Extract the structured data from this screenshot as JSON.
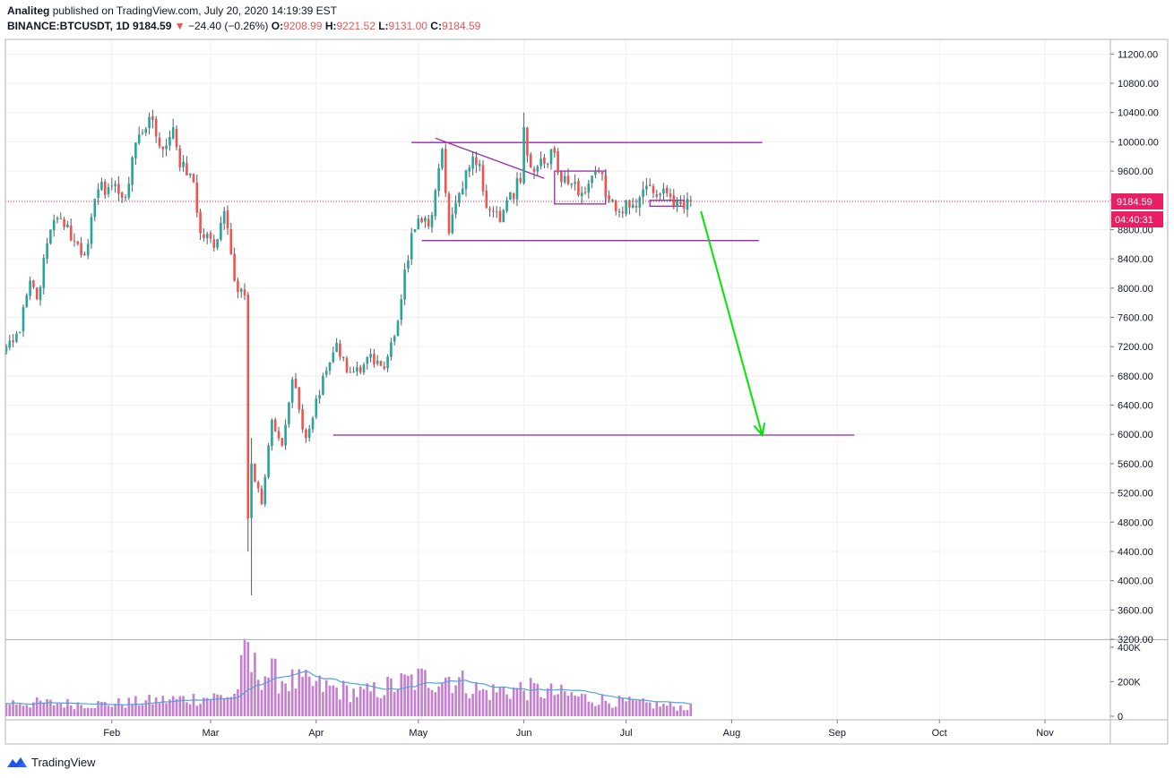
{
  "header": {
    "author": "Analiteg",
    "published_text": "published on TradingView.com, July 20, 2020 14:19:39 EST",
    "symbol": "BINANCE:BTCUSDT, 1D",
    "last": "9184.59",
    "change_arrow": "▼",
    "change": "−24.40 (−0.26%)",
    "o_label": "O:",
    "o_value": "9208.99",
    "h_label": "H:",
    "h_value": "9221.52",
    "l_label": "L:",
    "l_value": "9131.00",
    "c_label": "C:",
    "c_value": "9184.59"
  },
  "footer": {
    "brand": "TradingView",
    "logo_icon": "tradingview-logo-icon"
  },
  "colors": {
    "up": "#26a69a",
    "down": "#ef5350",
    "wick": "#555a64",
    "level_line": "#9c27b0",
    "arrow": "#00e600",
    "price_line": "#e91e63",
    "volume": "#ba68c8",
    "volume_ma": "#4fa3e0",
    "grid": "#eef0f3"
  },
  "chart_data": {
    "type": "candlestick",
    "symbol": "BINANCE:BTCUSDT",
    "interval": "1D",
    "x_tick_labels": [
      "Feb",
      "Mar",
      "Apr",
      "May",
      "Jun",
      "Jul",
      "Aug",
      "Sep",
      "Oct",
      "Nov"
    ],
    "x_tick_dates": [
      "2020-02-01",
      "2020-03-01",
      "2020-04-01",
      "2020-05-01",
      "2020-06-01",
      "2020-07-01",
      "2020-08-01",
      "2020-09-01",
      "2020-10-01",
      "2020-11-01"
    ],
    "y_tick_labels": [
      "11200.00",
      "10800.00",
      "10400.00",
      "10000.00",
      "9600.00",
      "9200.00",
      "8800.00",
      "8400.00",
      "8000.00",
      "7600.00",
      "7200.00",
      "6800.00",
      "6400.00",
      "6000.00",
      "5600.00",
      "5200.00",
      "4800.00",
      "4400.00",
      "4000.00",
      "3600.00",
      "3200.00"
    ],
    "ylim": [
      3200,
      11400
    ],
    "scale": "linear",
    "grid": true,
    "current_price_label": "9184.59",
    "countdown_label": "04:40:31",
    "current_price": 9184.59,
    "volume_tick_labels": [
      "400K",
      "200K",
      "0"
    ],
    "volume_ylim": [
      0,
      420000
    ],
    "price_keypoints": [
      [
        "2020-01-01",
        7200
      ],
      [
        "2020-01-05",
        7400
      ],
      [
        "2020-01-08",
        8100
      ],
      [
        "2020-01-10",
        7850
      ],
      [
        "2020-01-14",
        8800
      ],
      [
        "2020-01-17",
        8950
      ],
      [
        "2020-01-21",
        8650
      ],
      [
        "2020-01-24",
        8450
      ],
      [
        "2020-01-28",
        9350
      ],
      [
        "2020-02-01",
        9400
      ],
      [
        "2020-02-05",
        9250
      ],
      [
        "2020-02-09",
        10100
      ],
      [
        "2020-02-13",
        10300
      ],
      [
        "2020-02-16",
        9900
      ],
      [
        "2020-02-19",
        10200
      ],
      [
        "2020-02-21",
        9650
      ],
      [
        "2020-02-25",
        9450
      ],
      [
        "2020-02-27",
        8750
      ],
      [
        "2020-03-02",
        8550
      ],
      [
        "2020-03-05",
        9050
      ],
      [
        "2020-03-08",
        8100
      ],
      [
        "2020-03-11",
        7900
      ],
      [
        "2020-03-12",
        4850
      ],
      [
        "2020-03-13",
        5600
      ],
      [
        "2020-03-16",
        5050
      ],
      [
        "2020-03-19",
        6200
      ],
      [
        "2020-03-22",
        5850
      ],
      [
        "2020-03-25",
        6750
      ],
      [
        "2020-03-29",
        5950
      ],
      [
        "2020-04-03",
        6800
      ],
      [
        "2020-04-07",
        7250
      ],
      [
        "2020-04-10",
        6850
      ],
      [
        "2020-04-14",
        6850
      ],
      [
        "2020-04-17",
        7100
      ],
      [
        "2020-04-21",
        6900
      ],
      [
        "2020-04-25",
        7550
      ],
      [
        "2020-04-29",
        8750
      ],
      [
        "2020-05-02",
        8900
      ],
      [
        "2020-05-05",
        9000
      ],
      [
        "2020-05-08",
        9900
      ],
      [
        "2020-05-10",
        8750
      ],
      [
        "2020-05-13",
        9300
      ],
      [
        "2020-05-16",
        9650
      ],
      [
        "2020-05-19",
        9700
      ],
      [
        "2020-05-21",
        9100
      ],
      [
        "2020-05-25",
        8900
      ],
      [
        "2020-05-27",
        9200
      ],
      [
        "2020-05-31",
        9450
      ],
      [
        "2020-06-01",
        10200
      ],
      [
        "2020-06-03",
        9650
      ],
      [
        "2020-06-07",
        9700
      ],
      [
        "2020-06-10",
        9850
      ],
      [
        "2020-06-12",
        9450
      ],
      [
        "2020-06-16",
        9450
      ],
      [
        "2020-06-19",
        9300
      ],
      [
        "2020-06-23",
        9600
      ],
      [
        "2020-06-25",
        9250
      ],
      [
        "2020-06-28",
        9050
      ],
      [
        "2020-07-01",
        9200
      ],
      [
        "2020-07-04",
        9100
      ],
      [
        "2020-07-07",
        9400
      ],
      [
        "2020-07-10",
        9250
      ],
      [
        "2020-07-14",
        9250
      ],
      [
        "2020-07-17",
        9150
      ],
      [
        "2020-07-20",
        9184.59
      ]
    ],
    "volume_keypoints": [
      [
        "2020-01-01",
        80000
      ],
      [
        "2020-01-30",
        70000
      ],
      [
        "2020-03-08",
        120000
      ],
      [
        "2020-03-12",
        390000
      ],
      [
        "2020-03-13",
        280000
      ],
      [
        "2020-03-25",
        200000
      ],
      [
        "2020-04-15",
        130000
      ],
      [
        "2020-04-30",
        210000
      ],
      [
        "2020-05-10",
        230000
      ],
      [
        "2020-05-20",
        140000
      ],
      [
        "2020-06-01",
        160000
      ],
      [
        "2020-06-25",
        90000
      ],
      [
        "2020-07-20",
        50000
      ]
    ],
    "drawings": {
      "horizontal_levels": [
        {
          "price": 9990,
          "from": "2020-04-29",
          "to": "2020-08-10"
        },
        {
          "price": 8650,
          "from": "2020-05-02",
          "to": "2020-08-09"
        },
        {
          "price": 5990,
          "from": "2020-04-06",
          "to": "2020-09-06"
        }
      ],
      "trendline": {
        "from": [
          "2020-05-06",
          10050
        ],
        "to": [
          "2020-06-07",
          9500
        ]
      },
      "rectangles": [
        {
          "from": "2020-06-10",
          "to": "2020-06-25",
          "top": 9600,
          "bottom": 9150
        },
        {
          "from": "2020-07-08",
          "to": "2020-07-18",
          "top": 9200,
          "bottom": 9120
        }
      ],
      "arrow": {
        "from": [
          "2020-07-23",
          9050
        ],
        "to": [
          "2020-08-10",
          5990
        ]
      }
    }
  }
}
